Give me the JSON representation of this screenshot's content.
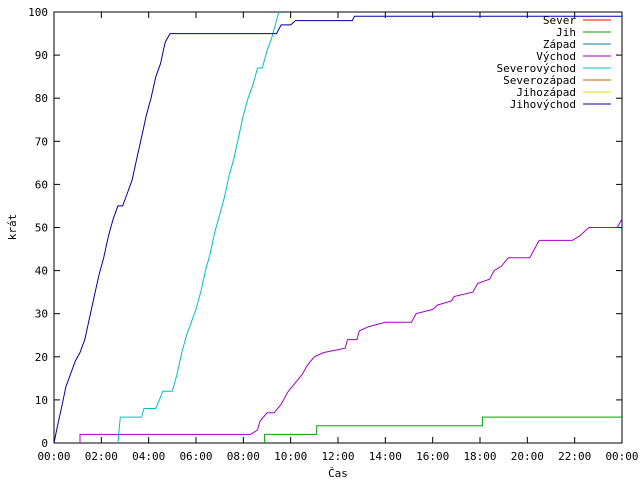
{
  "chart_data": {
    "type": "line",
    "title": "",
    "xlabel": "Čas",
    "ylabel": "krát",
    "xlim": [
      0,
      24
    ],
    "ylim": [
      0,
      100
    ],
    "grid": false,
    "legend_position": "top-right",
    "x_ticks": [
      {
        "value": 0,
        "label": "00:00"
      },
      {
        "value": 2,
        "label": "02:00"
      },
      {
        "value": 4,
        "label": "04:00"
      },
      {
        "value": 6,
        "label": "06:00"
      },
      {
        "value": 8,
        "label": "08:00"
      },
      {
        "value": 10,
        "label": "10:00"
      },
      {
        "value": 12,
        "label": "12:00"
      },
      {
        "value": 14,
        "label": "14:00"
      },
      {
        "value": 16,
        "label": "16:00"
      },
      {
        "value": 18,
        "label": "18:00"
      },
      {
        "value": 20,
        "label": "20:00"
      },
      {
        "value": 22,
        "label": "22:00"
      },
      {
        "value": 24,
        "label": "00:00"
      }
    ],
    "y_ticks": [
      0,
      10,
      20,
      30,
      40,
      50,
      60,
      70,
      80,
      90,
      100
    ],
    "series": [
      {
        "name": "Sever",
        "color": "#ff0000",
        "points": []
      },
      {
        "name": "Jih",
        "color": "#00a000",
        "points": [
          [
            8.9,
            0
          ],
          [
            8.9,
            2
          ],
          [
            11.1,
            2
          ],
          [
            11.1,
            4
          ],
          [
            18.1,
            4
          ],
          [
            18.1,
            6
          ],
          [
            24,
            6
          ]
        ]
      },
      {
        "name": "Západ",
        "color": "#0080a0",
        "points": []
      },
      {
        "name": "Východ",
        "color": "#a000c0",
        "points": [
          [
            1.1,
            0
          ],
          [
            1.1,
            2
          ],
          [
            8.3,
            2
          ],
          [
            8.6,
            3
          ],
          [
            8.7,
            5
          ],
          [
            9.0,
            7
          ],
          [
            9.3,
            7
          ],
          [
            9.6,
            9
          ],
          [
            9.9,
            12
          ],
          [
            10.2,
            14
          ],
          [
            10.5,
            16
          ],
          [
            10.7,
            18
          ],
          [
            11.0,
            20
          ],
          [
            11.4,
            21
          ],
          [
            12.3,
            22
          ],
          [
            12.4,
            24
          ],
          [
            12.8,
            24
          ],
          [
            12.9,
            26
          ],
          [
            13.3,
            27
          ],
          [
            14.0,
            28
          ],
          [
            15.1,
            28
          ],
          [
            15.3,
            30
          ],
          [
            16.0,
            31
          ],
          [
            16.2,
            32
          ],
          [
            16.8,
            33
          ],
          [
            16.9,
            34
          ],
          [
            17.7,
            35
          ],
          [
            17.9,
            37
          ],
          [
            18.4,
            38
          ],
          [
            18.6,
            40
          ],
          [
            18.9,
            41
          ],
          [
            19.2,
            43
          ],
          [
            20.1,
            43
          ],
          [
            20.5,
            47
          ],
          [
            21.9,
            47
          ],
          [
            22.2,
            48
          ],
          [
            22.6,
            50
          ],
          [
            23.5,
            50
          ],
          [
            23.8,
            50
          ],
          [
            24,
            52
          ]
        ]
      },
      {
        "name": "Severovýchod",
        "color": "#00c0c0",
        "points": [
          [
            2.7,
            0
          ],
          [
            2.8,
            6
          ],
          [
            3.7,
            6
          ],
          [
            3.8,
            8
          ],
          [
            4.3,
            8
          ],
          [
            4.6,
            12
          ],
          [
            5.0,
            12
          ],
          [
            5.2,
            16
          ],
          [
            5.4,
            21
          ],
          [
            5.6,
            25
          ],
          [
            5.8,
            28
          ],
          [
            6.0,
            31
          ],
          [
            6.2,
            35
          ],
          [
            6.4,
            40
          ],
          [
            6.6,
            44
          ],
          [
            6.8,
            49
          ],
          [
            7.0,
            53
          ],
          [
            7.2,
            57
          ],
          [
            7.4,
            62
          ],
          [
            7.6,
            66
          ],
          [
            7.8,
            71
          ],
          [
            8.0,
            76
          ],
          [
            8.2,
            80
          ],
          [
            8.4,
            83
          ],
          [
            8.6,
            87
          ],
          [
            8.8,
            87
          ],
          [
            9.0,
            91
          ],
          [
            9.2,
            94
          ],
          [
            9.4,
            98
          ],
          [
            9.5,
            100
          ]
        ]
      },
      {
        "name": "Severozápad",
        "color": "#c06000",
        "points": []
      },
      {
        "name": "Jihozápad",
        "color": "#e0e000",
        "points": []
      },
      {
        "name": "Jihovýchod",
        "color": "#0000a0",
        "points": [
          [
            0,
            0
          ],
          [
            0.15,
            4
          ],
          [
            0.35,
            9
          ],
          [
            0.5,
            13
          ],
          [
            0.7,
            16
          ],
          [
            0.9,
            19
          ],
          [
            1.1,
            21
          ],
          [
            1.3,
            24
          ],
          [
            1.5,
            29
          ],
          [
            1.7,
            34
          ],
          [
            1.9,
            39
          ],
          [
            2.1,
            43
          ],
          [
            2.3,
            48
          ],
          [
            2.5,
            52
          ],
          [
            2.7,
            55
          ],
          [
            2.9,
            55
          ],
          [
            3.1,
            58
          ],
          [
            3.3,
            61
          ],
          [
            3.5,
            66
          ],
          [
            3.7,
            71
          ],
          [
            3.9,
            76
          ],
          [
            4.1,
            80
          ],
          [
            4.3,
            85
          ],
          [
            4.5,
            88
          ],
          [
            4.7,
            93
          ],
          [
            4.9,
            95
          ],
          [
            9.4,
            95
          ],
          [
            9.6,
            97
          ],
          [
            10.0,
            97
          ],
          [
            10.2,
            98
          ],
          [
            12.6,
            98
          ],
          [
            12.7,
            99
          ],
          [
            24,
            99
          ]
        ]
      }
    ]
  }
}
